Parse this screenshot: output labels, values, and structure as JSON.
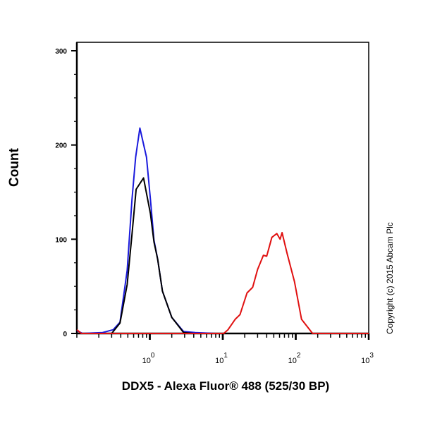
{
  "chart_data": {
    "type": "line",
    "title": "",
    "xlabel": "DDX5 - Alexa Fluor® 488 (525/30 BP)",
    "ylabel": "Count",
    "xscale": "log",
    "xlim": [
      0.1,
      1000
    ],
    "ylim": [
      0,
      300
    ],
    "yticks": [
      0,
      100,
      200,
      300
    ],
    "xticks": [
      {
        "value": 1,
        "base": "10",
        "exp": "0"
      },
      {
        "value": 10,
        "base": "10",
        "exp": "1"
      },
      {
        "value": 100,
        "base": "10",
        "exp": "2"
      },
      {
        "value": 1000,
        "base": "10",
        "exp": "3"
      }
    ],
    "grid": false,
    "annotation": "Copyright (c) 2015 Abcam Plc",
    "series": [
      {
        "color": "#1a1adc",
        "points": [
          [
            0.1,
            3
          ],
          [
            0.12,
            0
          ],
          [
            0.225,
            1
          ],
          [
            0.315,
            4
          ],
          [
            0.39,
            12
          ],
          [
            0.49,
            67
          ],
          [
            0.57,
            142
          ],
          [
            0.64,
            187
          ],
          [
            0.73,
            218
          ],
          [
            0.9,
            187
          ],
          [
            1.02,
            142
          ],
          [
            1.14,
            99
          ],
          [
            1.28,
            79
          ],
          [
            1.49,
            45
          ],
          [
            2.0,
            17
          ],
          [
            2.9,
            2
          ],
          [
            4.2,
            1
          ],
          [
            8,
            0
          ],
          [
            1000,
            0
          ]
        ]
      },
      {
        "color": "#000000",
        "points": [
          [
            0.1,
            0
          ],
          [
            0.3,
            0
          ],
          [
            0.39,
            11
          ],
          [
            0.49,
            52
          ],
          [
            0.57,
            105
          ],
          [
            0.65,
            153
          ],
          [
            0.82,
            165
          ],
          [
            1.02,
            127
          ],
          [
            1.14,
            97
          ],
          [
            1.28,
            79
          ],
          [
            1.49,
            45
          ],
          [
            2.0,
            17
          ],
          [
            2.9,
            1
          ],
          [
            4,
            0
          ],
          [
            1000,
            0
          ]
        ]
      },
      {
        "color": "#e01010",
        "points": [
          [
            0.1,
            4
          ],
          [
            0.115,
            0
          ],
          [
            10.3,
            0
          ],
          [
            11.8,
            4
          ],
          [
            14.8,
            15
          ],
          [
            17.2,
            20
          ],
          [
            21.5,
            43
          ],
          [
            25.7,
            49
          ],
          [
            30,
            68
          ],
          [
            36,
            83
          ],
          [
            40,
            82
          ],
          [
            47,
            102
          ],
          [
            55,
            106
          ],
          [
            61,
            100
          ],
          [
            65,
            107
          ],
          [
            76,
            85
          ],
          [
            96,
            55
          ],
          [
            120,
            15
          ],
          [
            170,
            0
          ],
          [
            1000,
            0
          ]
        ]
      }
    ]
  }
}
